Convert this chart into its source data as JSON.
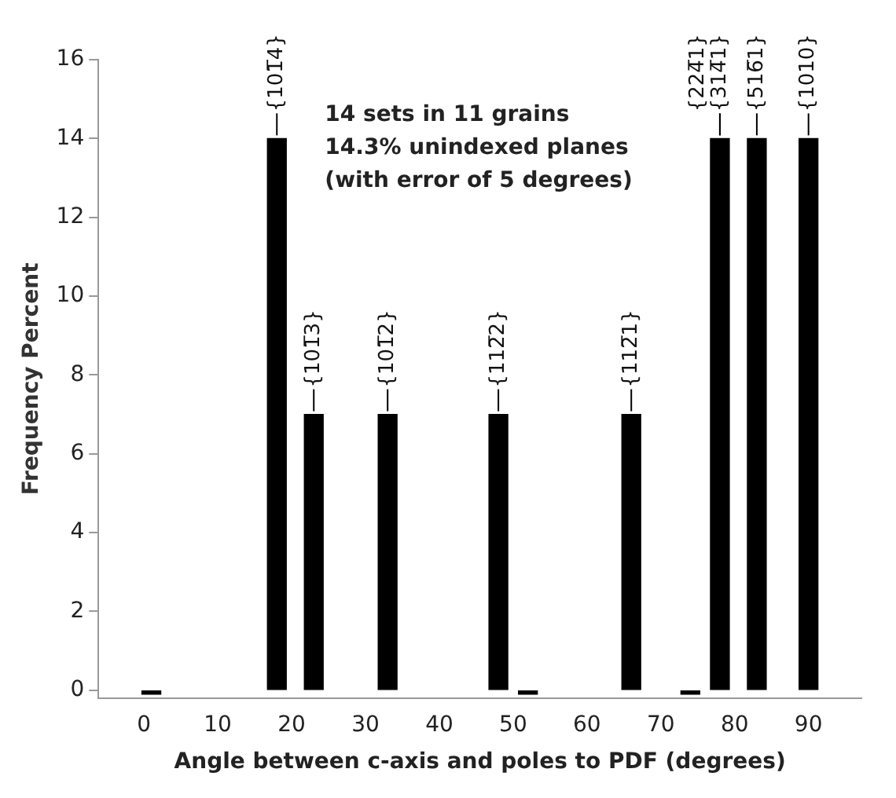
{
  "chart_data": {
    "type": "bar",
    "xlabel": "Angle between c-axis and poles to PDF (degrees)",
    "ylabel": "Frequency Percent",
    "x": [
      1,
      18,
      23,
      33,
      48,
      52,
      66,
      74,
      78,
      83,
      90
    ],
    "values": [
      -0.1,
      14,
      7,
      7,
      7,
      -0.1,
      7,
      -0.1,
      14,
      14,
      14
    ],
    "color": "#000000",
    "xlim": [
      -1,
      92
    ],
    "xticks": [
      0,
      10,
      20,
      30,
      40,
      50,
      60,
      70,
      80,
      90
    ],
    "ylim": [
      -0.2,
      16
    ],
    "yticks": [
      0,
      2,
      4,
      6,
      8,
      10,
      12,
      14,
      16
    ],
    "grid": false,
    "legend": false,
    "annotations": [
      "14 sets in 11 grains",
      "14.3% unindexed planes",
      "(with error of 5 degrees)",
      {
        "text": "{101̅4}",
        "x": 18,
        "y": 14
      },
      {
        "text": "{101̅3}",
        "x": 23,
        "y": 7
      },
      {
        "text": "{101̅2}",
        "x": 33,
        "y": 7
      },
      {
        "text": "{112̅2}",
        "x": 48,
        "y": 7
      },
      {
        "text": "{112̅1}",
        "x": 66,
        "y": 7
      },
      {
        "text": "{224̅1}",
        "x": 78,
        "y": 14
      },
      {
        "text": "{314̅1}",
        "x": 78,
        "y": 14
      },
      {
        "text": "{516̅1}",
        "x": 83,
        "y": 14
      },
      {
        "text": "{1010}",
        "x": 90,
        "y": 14
      }
    ]
  }
}
